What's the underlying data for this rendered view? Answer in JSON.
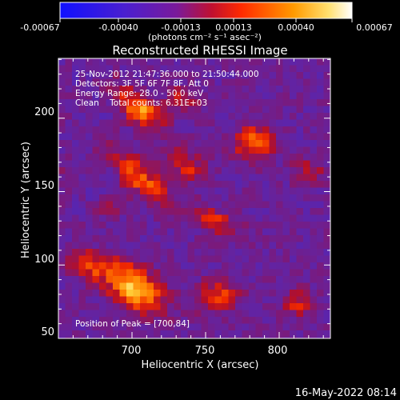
{
  "colorbar": {
    "ticks": [
      "-0.00067",
      "-0.00040",
      "-0.00013",
      "0.00013",
      "0.00040",
      "0.00067"
    ],
    "units": "(photons cm⁻² s⁻¹ asec⁻²)",
    "colors": [
      "#1010ff",
      "#5a1ad8",
      "#b0108a",
      "#ff2a00",
      "#ff9a00",
      "#ffffff"
    ]
  },
  "plot": {
    "title": "Reconstructed RHESSI Image",
    "xlabel": "Heliocentric X (arcsec)",
    "ylabel": "Heliocentric Y (arcsec)",
    "xticks": [
      "700",
      "750",
      "800"
    ],
    "yticks": [
      "200",
      "150",
      "100",
      "50"
    ],
    "info": [
      "25-Nov-2012 21:47:36.000 to 21:50:44.000",
      "Detectors: 3F 5F 6F 7F 8F, Att 0",
      "Energy Range: 28.0 - 50.0 keV",
      "Clean    Total counts: 6.31E+03"
    ],
    "peak": "Position of Peak = [700,84]"
  },
  "footer": {
    "timestamp": "16-May-2022 08:14"
  }
}
